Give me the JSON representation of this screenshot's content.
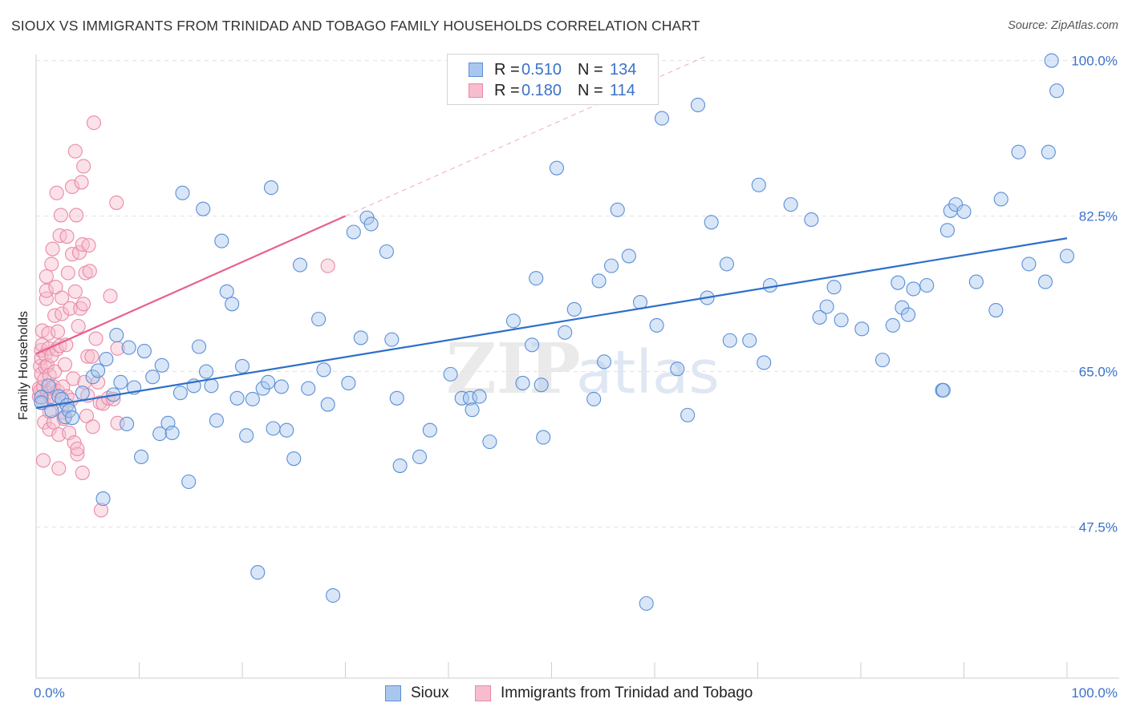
{
  "title": "SIOUX VS IMMIGRANTS FROM TRINIDAD AND TOBAGO FAMILY HOUSEHOLDS CORRELATION CHART",
  "source": "Source: ZipAtlas.com",
  "watermark": {
    "zip": "ZIP",
    "atlas": "atlas"
  },
  "colors": {
    "sioux_fill": "#a9c7ee",
    "sioux_stroke": "#5b8fd6",
    "sioux_line": "#2d6fc9",
    "tt_fill": "#f7bccd",
    "tt_stroke": "#e98aa8",
    "tt_line": "#e8608c",
    "grid": "#e2e2e2",
    "tick_text": "#3b72c8"
  },
  "legend": {
    "rows": [
      {
        "r_label": "R =",
        "r_value": "0.510",
        "n_label": "N =",
        "n_value": "134"
      },
      {
        "r_label": "R =",
        "r_value": "0.180",
        "n_label": "N =",
        "n_value": "114"
      }
    ]
  },
  "bottom_legend": {
    "series1": "Sioux",
    "series2": "Immigrants from Trinidad and Tobago"
  },
  "chart_data": {
    "type": "scatter",
    "title": "SIOUX VS IMMIGRANTS FROM TRINIDAD AND TOBAGO FAMILY HOUSEHOLDS CORRELATION CHART",
    "xlabel": "",
    "ylabel": "Family Households",
    "xlim": [
      0,
      100
    ],
    "ylim": [
      30.5,
      100.5
    ],
    "x_tick_labels": [
      "0.0%",
      "100.0%"
    ],
    "y_ticks": [
      47.5,
      65.0,
      82.5,
      100.0
    ],
    "y_tick_labels": [
      "47.5%",
      "65.0%",
      "82.5%",
      "100.0%"
    ],
    "grid": true,
    "series": [
      {
        "name": "Sioux",
        "R": 0.51,
        "N": 134,
        "trend": {
          "x": [
            0,
            100
          ],
          "y": [
            60.9,
            80.0
          ]
        },
        "points": [
          [
            0.5,
            62.1
          ],
          [
            0.5,
            61.5
          ],
          [
            1.2,
            63.4
          ],
          [
            1.5,
            60.6
          ],
          [
            2.2,
            62.2
          ],
          [
            2.5,
            61.9
          ],
          [
            2.8,
            59.9
          ],
          [
            3.0,
            61.2
          ],
          [
            3.2,
            60.6
          ],
          [
            3.5,
            59.8
          ],
          [
            4.5,
            62.6
          ],
          [
            5.5,
            64.4
          ],
          [
            6.0,
            65.1
          ],
          [
            6.5,
            50.7
          ],
          [
            6.8,
            66.4
          ],
          [
            7.5,
            62.4
          ],
          [
            7.8,
            69.1
          ],
          [
            8.2,
            63.8
          ],
          [
            8.8,
            59.1
          ],
          [
            9.0,
            67.7
          ],
          [
            9.5,
            63.2
          ],
          [
            10.2,
            55.4
          ],
          [
            10.5,
            67.3
          ],
          [
            11.3,
            64.4
          ],
          [
            12.0,
            58.0
          ],
          [
            12.2,
            65.7
          ],
          [
            12.8,
            59.2
          ],
          [
            13.2,
            58.1
          ],
          [
            14.0,
            62.6
          ],
          [
            14.2,
            85.1
          ],
          [
            14.8,
            52.6
          ],
          [
            15.3,
            63.4
          ],
          [
            15.8,
            67.8
          ],
          [
            16.2,
            83.3
          ],
          [
            16.5,
            65.0
          ],
          [
            17.0,
            63.4
          ],
          [
            17.5,
            59.5
          ],
          [
            18.0,
            79.7
          ],
          [
            18.5,
            74.0
          ],
          [
            19.0,
            72.6
          ],
          [
            19.5,
            62.0
          ],
          [
            20.0,
            65.6
          ],
          [
            20.4,
            57.8
          ],
          [
            21.0,
            61.9
          ],
          [
            21.5,
            42.4
          ],
          [
            22.0,
            63.1
          ],
          [
            22.5,
            63.8
          ],
          [
            22.8,
            85.7
          ],
          [
            23.0,
            58.6
          ],
          [
            23.8,
            63.3
          ],
          [
            24.3,
            58.4
          ],
          [
            25.0,
            55.2
          ],
          [
            25.6,
            77.0
          ],
          [
            26.4,
            63.1
          ],
          [
            27.4,
            70.9
          ],
          [
            27.9,
            65.2
          ],
          [
            28.3,
            61.3
          ],
          [
            28.8,
            39.8
          ],
          [
            30.3,
            63.7
          ],
          [
            30.8,
            80.7
          ],
          [
            31.5,
            68.8
          ],
          [
            32.1,
            82.3
          ],
          [
            32.5,
            81.6
          ],
          [
            34.0,
            78.5
          ],
          [
            34.5,
            68.6
          ],
          [
            35.0,
            62.0
          ],
          [
            35.3,
            54.4
          ],
          [
            37.2,
            55.4
          ],
          [
            38.2,
            58.4
          ],
          [
            40.2,
            64.7
          ],
          [
            41.3,
            62.0
          ],
          [
            42.1,
            62.0
          ],
          [
            42.3,
            60.7
          ],
          [
            43.0,
            62.2
          ],
          [
            44.0,
            57.1
          ],
          [
            46.3,
            70.7
          ],
          [
            47.2,
            63.7
          ],
          [
            48.1,
            68.0
          ],
          [
            48.5,
            75.5
          ],
          [
            49.0,
            63.5
          ],
          [
            49.2,
            57.6
          ],
          [
            50.5,
            87.9
          ],
          [
            51.3,
            69.4
          ],
          [
            52.2,
            72.0
          ],
          [
            54.1,
            61.9
          ],
          [
            54.6,
            75.2
          ],
          [
            55.1,
            66.1
          ],
          [
            55.8,
            76.9
          ],
          [
            56.4,
            83.2
          ],
          [
            57.5,
            78.0
          ],
          [
            58.6,
            72.8
          ],
          [
            59.2,
            38.9
          ],
          [
            60.2,
            70.2
          ],
          [
            60.7,
            93.5
          ],
          [
            62.2,
            65.3
          ],
          [
            63.2,
            60.1
          ],
          [
            64.2,
            95.0
          ],
          [
            65.1,
            73.3
          ],
          [
            65.5,
            81.8
          ],
          [
            67.0,
            77.1
          ],
          [
            67.3,
            68.5
          ],
          [
            69.2,
            68.5
          ],
          [
            70.1,
            86.0
          ],
          [
            70.6,
            66.0
          ],
          [
            71.2,
            74.7
          ],
          [
            73.2,
            83.8
          ],
          [
            75.2,
            82.1
          ],
          [
            76.0,
            71.1
          ],
          [
            76.7,
            72.3
          ],
          [
            77.4,
            74.5
          ],
          [
            78.1,
            70.8
          ],
          [
            80.1,
            69.8
          ],
          [
            82.1,
            66.3
          ],
          [
            83.1,
            70.2
          ],
          [
            83.6,
            75.0
          ],
          [
            84.0,
            72.2
          ],
          [
            84.6,
            71.4
          ],
          [
            85.1,
            74.3
          ],
          [
            86.4,
            74.7
          ],
          [
            87.9,
            62.9
          ],
          [
            88.0,
            62.9
          ],
          [
            88.4,
            80.9
          ],
          [
            88.7,
            83.1
          ],
          [
            89.2,
            83.8
          ],
          [
            90.0,
            83.0
          ],
          [
            91.2,
            75.1
          ],
          [
            93.1,
            71.9
          ],
          [
            93.6,
            84.4
          ],
          [
            95.3,
            89.7
          ],
          [
            96.3,
            77.1
          ],
          [
            97.9,
            75.1
          ],
          [
            98.2,
            89.7
          ],
          [
            98.5,
            100.0
          ],
          [
            99.0,
            96.6
          ],
          [
            100.0,
            78.0
          ]
        ]
      },
      {
        "name": "Immigrants from Trinidad and Tobago",
        "R": 0.18,
        "N": 114,
        "trend": {
          "x": [
            0,
            30.0
          ],
          "y": [
            67.0,
            82.5
          ],
          "extended": {
            "x": [
              30.0,
              65.0
            ],
            "y": [
              82.5,
              100.5
            ]
          }
        },
        "points": [
          [
            0.3,
            62.2
          ],
          [
            0.3,
            63.1
          ],
          [
            0.4,
            62.8
          ],
          [
            0.4,
            65.6
          ],
          [
            0.5,
            64.7
          ],
          [
            0.5,
            66.5
          ],
          [
            0.5,
            67.4
          ],
          [
            0.6,
            68.0
          ],
          [
            0.6,
            69.6
          ],
          [
            0.7,
            61.5
          ],
          [
            0.7,
            63.3
          ],
          [
            0.7,
            55.0
          ],
          [
            0.8,
            59.3
          ],
          [
            0.8,
            64.1
          ],
          [
            0.9,
            65.5
          ],
          [
            0.9,
            66.9
          ],
          [
            1.0,
            75.7
          ],
          [
            1.0,
            73.2
          ],
          [
            1.0,
            74.1
          ],
          [
            1.1,
            62.6
          ],
          [
            1.1,
            65.7
          ],
          [
            1.2,
            67.6
          ],
          [
            1.2,
            69.3
          ],
          [
            1.3,
            58.5
          ],
          [
            1.3,
            60.5
          ],
          [
            1.3,
            64.6
          ],
          [
            1.4,
            62.2
          ],
          [
            1.5,
            63.1
          ],
          [
            1.5,
            66.8
          ],
          [
            1.5,
            77.1
          ],
          [
            1.6,
            78.8
          ],
          [
            1.6,
            61.8
          ],
          [
            1.7,
            59.3
          ],
          [
            1.7,
            63.3
          ],
          [
            1.8,
            65.0
          ],
          [
            1.8,
            71.3
          ],
          [
            1.9,
            74.5
          ],
          [
            2.0,
            85.1
          ],
          [
            2.0,
            67.5
          ],
          [
            2.1,
            69.5
          ],
          [
            2.1,
            62.8
          ],
          [
            2.2,
            54.1
          ],
          [
            2.2,
            57.9
          ],
          [
            2.3,
            67.9
          ],
          [
            2.3,
            80.3
          ],
          [
            2.4,
            82.6
          ],
          [
            2.5,
            71.5
          ],
          [
            2.5,
            73.3
          ],
          [
            2.6,
            63.3
          ],
          [
            2.6,
            60.4
          ],
          [
            2.7,
            59.7
          ],
          [
            2.8,
            65.8
          ],
          [
            2.9,
            68.0
          ],
          [
            3.0,
            80.2
          ],
          [
            3.0,
            62.2
          ],
          [
            3.1,
            76.1
          ],
          [
            3.2,
            58.1
          ],
          [
            3.3,
            72.1
          ],
          [
            3.4,
            61.8
          ],
          [
            3.5,
            78.2
          ],
          [
            3.5,
            85.8
          ],
          [
            3.6,
            64.2
          ],
          [
            3.7,
            57.0
          ],
          [
            3.8,
            74.0
          ],
          [
            3.8,
            89.8
          ],
          [
            3.9,
            82.6
          ],
          [
            4.0,
            55.7
          ],
          [
            4.0,
            56.3
          ],
          [
            4.1,
            70.1
          ],
          [
            4.2,
            78.4
          ],
          [
            4.3,
            72.1
          ],
          [
            4.4,
            86.3
          ],
          [
            4.5,
            79.3
          ],
          [
            4.5,
            53.6
          ],
          [
            4.6,
            72.6
          ],
          [
            4.6,
            88.1
          ],
          [
            4.7,
            63.8
          ],
          [
            4.8,
            76.1
          ],
          [
            4.9,
            60.0
          ],
          [
            5.0,
            66.7
          ],
          [
            5.0,
            62.3
          ],
          [
            5.1,
            79.2
          ],
          [
            5.2,
            76.3
          ],
          [
            5.4,
            66.7
          ],
          [
            5.5,
            58.8
          ],
          [
            5.6,
            93.0
          ],
          [
            5.8,
            68.7
          ],
          [
            6.0,
            63.8
          ],
          [
            6.2,
            61.5
          ],
          [
            6.3,
            49.4
          ],
          [
            6.5,
            61.4
          ],
          [
            7.0,
            62.0
          ],
          [
            7.2,
            73.5
          ],
          [
            7.5,
            61.9
          ],
          [
            7.8,
            84.0
          ],
          [
            7.9,
            67.6
          ],
          [
            7.9,
            59.2
          ],
          [
            28.3,
            76.9
          ]
        ]
      }
    ]
  }
}
